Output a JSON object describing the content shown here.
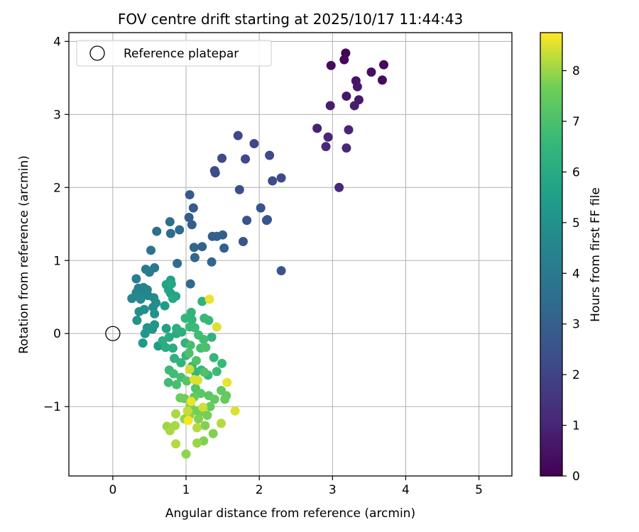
{
  "chart_data": {
    "type": "scatter",
    "title": "FOV centre drift starting at 2025/10/17 11:44:43",
    "xlabel": "Angular distance from reference (arcmin)",
    "ylabel": "Rotation from reference (arcmin)",
    "xlim": [
      -0.6,
      5.45
    ],
    "ylim": [
      -1.95,
      4.12
    ],
    "xticks": [
      0,
      1,
      2,
      3,
      4,
      5
    ],
    "xtick_labels": [
      "0",
      "1",
      "2",
      "3",
      "4",
      "5"
    ],
    "yticks": [
      -1,
      0,
      1,
      2,
      3,
      4
    ],
    "ytick_labels": [
      "−1",
      "0",
      "1",
      "2",
      "3",
      "4"
    ],
    "grid": true,
    "legend": {
      "position": "top-left",
      "entries": [
        "Reference platepar"
      ]
    },
    "reference_point": {
      "x": 0,
      "y": 0
    },
    "colorbar": {
      "label": "Hours from first FF file",
      "colormap": "viridis",
      "range": [
        0,
        8.75
      ],
      "ticks": [
        0,
        1,
        2,
        3,
        4,
        5,
        6,
        7,
        8
      ],
      "tick_labels": [
        "0",
        "1",
        "2",
        "3",
        "4",
        "5",
        "6",
        "7",
        "8"
      ]
    },
    "points": [
      {
        "x": 3.18,
        "y": 3.84,
        "c": 0.1
      },
      {
        "x": 3.7,
        "y": 3.68,
        "c": 0.2
      },
      {
        "x": 2.98,
        "y": 3.67,
        "c": 0.3
      },
      {
        "x": 3.16,
        "y": 3.75,
        "c": 0.2
      },
      {
        "x": 3.53,
        "y": 3.58,
        "c": 0.4
      },
      {
        "x": 3.68,
        "y": 3.47,
        "c": 0.3
      },
      {
        "x": 3.32,
        "y": 3.46,
        "c": 0.5
      },
      {
        "x": 3.34,
        "y": 3.38,
        "c": 0.6
      },
      {
        "x": 3.19,
        "y": 3.25,
        "c": 0.6
      },
      {
        "x": 3.36,
        "y": 3.2,
        "c": 0.7
      },
      {
        "x": 2.97,
        "y": 3.12,
        "c": 0.8
      },
      {
        "x": 3.3,
        "y": 3.12,
        "c": 0.8
      },
      {
        "x": 2.79,
        "y": 2.81,
        "c": 0.9
      },
      {
        "x": 2.94,
        "y": 2.69,
        "c": 1.0
      },
      {
        "x": 3.22,
        "y": 2.79,
        "c": 1.0
      },
      {
        "x": 2.91,
        "y": 2.56,
        "c": 1.1
      },
      {
        "x": 3.19,
        "y": 2.54,
        "c": 1.1
      },
      {
        "x": 3.09,
        "y": 2.0,
        "c": 1.2
      },
      {
        "x": 1.71,
        "y": 2.71,
        "c": 2.1
      },
      {
        "x": 1.93,
        "y": 2.6,
        "c": 2.1
      },
      {
        "x": 1.49,
        "y": 2.4,
        "c": 2.2
      },
      {
        "x": 1.81,
        "y": 2.39,
        "c": 2.2
      },
      {
        "x": 2.14,
        "y": 2.44,
        "c": 2.2
      },
      {
        "x": 1.39,
        "y": 2.23,
        "c": 2.3
      },
      {
        "x": 1.4,
        "y": 2.2,
        "c": 2.3
      },
      {
        "x": 2.18,
        "y": 2.09,
        "c": 2.3
      },
      {
        "x": 2.3,
        "y": 2.13,
        "c": 2.2
      },
      {
        "x": 1.73,
        "y": 1.97,
        "c": 2.4
      },
      {
        "x": 2.02,
        "y": 1.72,
        "c": 2.5
      },
      {
        "x": 1.83,
        "y": 1.55,
        "c": 2.5
      },
      {
        "x": 2.11,
        "y": 1.56,
        "c": 2.6
      },
      {
        "x": 2.1,
        "y": 1.55,
        "c": 2.6
      },
      {
        "x": 1.78,
        "y": 1.26,
        "c": 2.6
      },
      {
        "x": 2.3,
        "y": 0.86,
        "c": 2.6
      },
      {
        "x": 1.05,
        "y": 1.9,
        "c": 2.8
      },
      {
        "x": 1.1,
        "y": 1.72,
        "c": 2.8
      },
      {
        "x": 1.04,
        "y": 1.59,
        "c": 2.9
      },
      {
        "x": 1.08,
        "y": 1.49,
        "c": 2.9
      },
      {
        "x": 1.5,
        "y": 1.35,
        "c": 2.9
      },
      {
        "x": 1.36,
        "y": 1.33,
        "c": 3.0
      },
      {
        "x": 1.42,
        "y": 1.33,
        "c": 3.0
      },
      {
        "x": 1.52,
        "y": 1.17,
        "c": 3.0
      },
      {
        "x": 1.11,
        "y": 1.18,
        "c": 3.2
      },
      {
        "x": 1.22,
        "y": 1.19,
        "c": 3.1
      },
      {
        "x": 1.12,
        "y": 1.04,
        "c": 3.2
      },
      {
        "x": 1.35,
        "y": 0.98,
        "c": 3.2
      },
      {
        "x": 0.91,
        "y": 1.42,
        "c": 3.4
      },
      {
        "x": 0.78,
        "y": 1.53,
        "c": 3.5
      },
      {
        "x": 0.79,
        "y": 1.37,
        "c": 3.5
      },
      {
        "x": 0.6,
        "y": 1.4,
        "c": 3.6
      },
      {
        "x": 0.88,
        "y": 0.96,
        "c": 3.5
      },
      {
        "x": 1.06,
        "y": 0.68,
        "c": 3.4
      },
      {
        "x": 0.52,
        "y": 1.14,
        "c": 3.8
      },
      {
        "x": 0.57,
        "y": 0.9,
        "c": 4.0
      },
      {
        "x": 0.45,
        "y": 0.88,
        "c": 4.0
      },
      {
        "x": 0.5,
        "y": 0.84,
        "c": 4.1
      },
      {
        "x": 0.32,
        "y": 0.75,
        "c": 4.2
      },
      {
        "x": 0.42,
        "y": 0.63,
        "c": 4.3
      },
      {
        "x": 0.35,
        "y": 0.62,
        "c": 4.3
      },
      {
        "x": 0.47,
        "y": 0.6,
        "c": 4.4
      },
      {
        "x": 0.32,
        "y": 0.56,
        "c": 4.5
      },
      {
        "x": 0.44,
        "y": 0.55,
        "c": 4.5
      },
      {
        "x": 0.48,
        "y": 0.52,
        "c": 4.5
      },
      {
        "x": 0.34,
        "y": 0.51,
        "c": 4.6
      },
      {
        "x": 0.26,
        "y": 0.48,
        "c": 4.6
      },
      {
        "x": 0.38,
        "y": 0.47,
        "c": 4.7
      },
      {
        "x": 0.56,
        "y": 0.49,
        "c": 4.7
      },
      {
        "x": 0.59,
        "y": 0.42,
        "c": 4.8
      },
      {
        "x": 0.55,
        "y": 0.36,
        "c": 4.8
      },
      {
        "x": 0.43,
        "y": 0.33,
        "c": 4.9
      },
      {
        "x": 0.36,
        "y": 0.3,
        "c": 4.9
      },
      {
        "x": 0.57,
        "y": 0.27,
        "c": 5.0
      },
      {
        "x": 0.33,
        "y": 0.18,
        "c": 5.0
      },
      {
        "x": 0.57,
        "y": 0.12,
        "c": 5.1
      },
      {
        "x": 0.47,
        "y": 0.08,
        "c": 5.1
      },
      {
        "x": 0.54,
        "y": 0.06,
        "c": 5.2
      },
      {
        "x": 0.44,
        "y": 0.0,
        "c": 5.2
      },
      {
        "x": 0.41,
        "y": -0.13,
        "c": 5.3
      },
      {
        "x": 0.62,
        "y": -0.17,
        "c": 5.3
      },
      {
        "x": 0.71,
        "y": 0.38,
        "c": 5.4
      },
      {
        "x": 0.73,
        "y": 0.07,
        "c": 5.5
      },
      {
        "x": 0.79,
        "y": 0.73,
        "c": 5.6
      },
      {
        "x": 0.86,
        "y": 0.51,
        "c": 5.6
      },
      {
        "x": 0.79,
        "y": 0.55,
        "c": 5.6
      },
      {
        "x": 0.73,
        "y": 0.67,
        "c": 5.7
      },
      {
        "x": 0.76,
        "y": 0.6,
        "c": 5.7
      },
      {
        "x": 0.8,
        "y": 0.68,
        "c": 5.8
      },
      {
        "x": 0.82,
        "y": 0.48,
        "c": 5.9
      },
      {
        "x": 0.87,
        "y": 0.0,
        "c": 6.0
      },
      {
        "x": 0.77,
        "y": -0.05,
        "c": 6.0
      },
      {
        "x": 0.68,
        "y": -0.1,
        "c": 6.1
      },
      {
        "x": 0.72,
        "y": -0.19,
        "c": 6.1
      },
      {
        "x": 0.82,
        "y": -0.2,
        "c": 6.1
      },
      {
        "x": 0.87,
        "y": 0.07,
        "c": 6.2
      },
      {
        "x": 0.94,
        "y": 0.02,
        "c": 6.2
      },
      {
        "x": 0.99,
        "y": -0.13,
        "c": 6.3
      },
      {
        "x": 0.84,
        "y": -0.34,
        "c": 6.3
      },
      {
        "x": 0.93,
        "y": -0.4,
        "c": 6.4
      },
      {
        "x": 1.0,
        "y": -0.3,
        "c": 6.4
      },
      {
        "x": 1.08,
        "y": -0.45,
        "c": 6.5
      },
      {
        "x": 1.13,
        "y": -0.53,
        "c": 6.5
      },
      {
        "x": 1.21,
        "y": -0.5,
        "c": 6.6
      },
      {
        "x": 1.3,
        "y": -0.57,
        "c": 6.6
      },
      {
        "x": 1.38,
        "y": -0.33,
        "c": 6.5
      },
      {
        "x": 1.49,
        "y": -0.41,
        "c": 6.6
      },
      {
        "x": 1.42,
        "y": -0.52,
        "c": 6.7
      },
      {
        "x": 0.77,
        "y": -0.5,
        "c": 6.7
      },
      {
        "x": 0.83,
        "y": -0.55,
        "c": 6.8
      },
      {
        "x": 0.76,
        "y": -0.67,
        "c": 6.8
      },
      {
        "x": 0.87,
        "y": -0.7,
        "c": 6.9
      },
      {
        "x": 0.93,
        "y": -0.6,
        "c": 6.9
      },
      {
        "x": 1.35,
        "y": -0.05,
        "c": 6.4
      },
      {
        "x": 1.22,
        "y": 0.44,
        "c": 6.3
      },
      {
        "x": 1.07,
        "y": 0.29,
        "c": 6.4
      },
      {
        "x": 0.99,
        "y": 0.21,
        "c": 6.5
      },
      {
        "x": 1.08,
        "y": 0.19,
        "c": 6.5
      },
      {
        "x": 1.25,
        "y": 0.21,
        "c": 6.6
      },
      {
        "x": 1.31,
        "y": 0.18,
        "c": 6.6
      },
      {
        "x": 1.05,
        "y": 0.09,
        "c": 6.7
      },
      {
        "x": 1.12,
        "y": 0.08,
        "c": 6.7
      },
      {
        "x": 1.17,
        "y": -0.02,
        "c": 6.8
      },
      {
        "x": 1.24,
        "y": -0.08,
        "c": 6.8
      },
      {
        "x": 1.06,
        "y": -0.16,
        "c": 6.9
      },
      {
        "x": 1.2,
        "y": -0.2,
        "c": 6.9
      },
      {
        "x": 1.27,
        "y": -0.19,
        "c": 7.0
      },
      {
        "x": 1.04,
        "y": -0.27,
        "c": 7.0
      },
      {
        "x": 1.14,
        "y": -0.37,
        "c": 7.1
      },
      {
        "x": 1.25,
        "y": -0.53,
        "c": 7.1
      },
      {
        "x": 1.01,
        "y": -0.65,
        "c": 7.2
      },
      {
        "x": 1.13,
        "y": -0.75,
        "c": 7.2
      },
      {
        "x": 1.2,
        "y": -0.82,
        "c": 7.3
      },
      {
        "x": 1.31,
        "y": -0.85,
        "c": 7.3
      },
      {
        "x": 1.39,
        "y": -0.9,
        "c": 7.4
      },
      {
        "x": 1.48,
        "y": -0.78,
        "c": 7.4
      },
      {
        "x": 1.55,
        "y": -0.85,
        "c": 7.4
      },
      {
        "x": 1.53,
        "y": -0.9,
        "c": 7.5
      },
      {
        "x": 1.33,
        "y": -1.0,
        "c": 7.5
      },
      {
        "x": 1.11,
        "y": -0.87,
        "c": 7.5
      },
      {
        "x": 0.98,
        "y": -0.89,
        "c": 7.6
      },
      {
        "x": 0.92,
        "y": -0.88,
        "c": 7.6
      },
      {
        "x": 1.06,
        "y": -0.99,
        "c": 7.7
      },
      {
        "x": 1.15,
        "y": -1.06,
        "c": 7.7
      },
      {
        "x": 1.22,
        "y": -1.07,
        "c": 7.7
      },
      {
        "x": 1.29,
        "y": -1.12,
        "c": 7.7
      },
      {
        "x": 1.17,
        "y": -1.17,
        "c": 7.8
      },
      {
        "x": 1.26,
        "y": -1.26,
        "c": 7.8
      },
      {
        "x": 1.37,
        "y": -1.37,
        "c": 7.8
      },
      {
        "x": 1.24,
        "y": -1.47,
        "c": 7.8
      },
      {
        "x": 0.98,
        "y": -1.17,
        "c": 7.9
      },
      {
        "x": 1.05,
        "y": -1.12,
        "c": 7.9
      },
      {
        "x": 1.0,
        "y": -1.65,
        "c": 7.9
      },
      {
        "x": 1.15,
        "y": -1.5,
        "c": 8.0
      },
      {
        "x": 0.74,
        "y": -1.27,
        "c": 8.0
      },
      {
        "x": 0.78,
        "y": -1.33,
        "c": 8.1
      },
      {
        "x": 0.86,
        "y": -1.1,
        "c": 8.1
      },
      {
        "x": 0.85,
        "y": -1.26,
        "c": 8.1
      },
      {
        "x": 1.15,
        "y": -1.29,
        "c": 8.2
      },
      {
        "x": 1.48,
        "y": -1.23,
        "c": 8.2
      },
      {
        "x": 0.86,
        "y": -1.51,
        "c": 8.2
      },
      {
        "x": 1.02,
        "y": -1.06,
        "c": 8.3
      },
      {
        "x": 1.32,
        "y": 0.47,
        "c": 8.6
      },
      {
        "x": 1.42,
        "y": 0.09,
        "c": 8.5
      },
      {
        "x": 1.56,
        "y": -0.67,
        "c": 8.6
      },
      {
        "x": 1.67,
        "y": -1.06,
        "c": 8.5
      },
      {
        "x": 1.23,
        "y": -1.01,
        "c": 8.4
      },
      {
        "x": 1.05,
        "y": -0.49,
        "c": 8.4
      },
      {
        "x": 1.11,
        "y": -0.63,
        "c": 8.5
      },
      {
        "x": 1.16,
        "y": -0.64,
        "c": 8.5
      },
      {
        "x": 1.03,
        "y": -1.19,
        "c": 8.7
      },
      {
        "x": 1.07,
        "y": -0.93,
        "c": 8.6
      }
    ]
  }
}
